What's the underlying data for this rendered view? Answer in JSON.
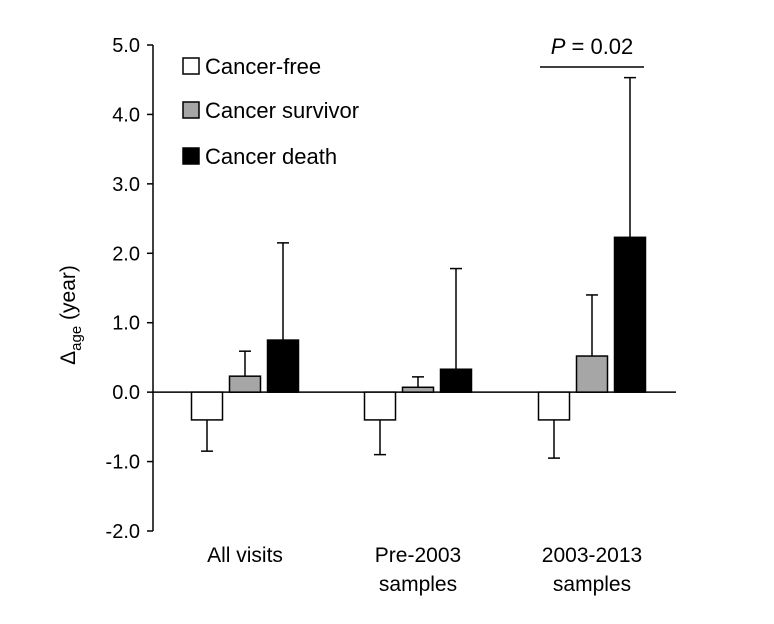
{
  "chart_data": {
    "type": "bar",
    "categories": [
      "All visits",
      "Pre-2003 samples",
      "2003-2013 samples"
    ],
    "category_lines": [
      [
        "All visits"
      ],
      [
        "Pre-2003",
        "samples"
      ],
      [
        "2003-2013",
        "samples"
      ]
    ],
    "series": [
      {
        "name": "Cancer-free",
        "color": "#ffffff",
        "values": [
          -0.4,
          -0.4,
          -0.4
        ],
        "err": [
          0.45,
          0.5,
          0.55
        ]
      },
      {
        "name": "Cancer survivor",
        "color": "#a6a6a6",
        "values": [
          0.23,
          0.07,
          0.52
        ],
        "err": [
          0.36,
          0.15,
          0.88
        ]
      },
      {
        "name": "Cancer death",
        "color": "#000000",
        "values": [
          0.75,
          0.33,
          2.23
        ],
        "err": [
          1.4,
          1.45,
          2.3
        ]
      }
    ],
    "ylabel_main": "Δ",
    "ylabel_sub": "age",
    "ylabel_rest": " (year)",
    "ylim": [
      -2.0,
      5.0
    ],
    "yticks": [
      "5.0",
      "4.0",
      "3.0",
      "2.0",
      "1.0",
      "0.0",
      "-1.0",
      "-2.0"
    ],
    "ytick_values": [
      5,
      4,
      3,
      2,
      1,
      0,
      -1,
      -2
    ],
    "legend_position": "top-left",
    "annotation": {
      "p_label": "P",
      "p_rest": " = 0.02",
      "category_index": 2
    }
  }
}
